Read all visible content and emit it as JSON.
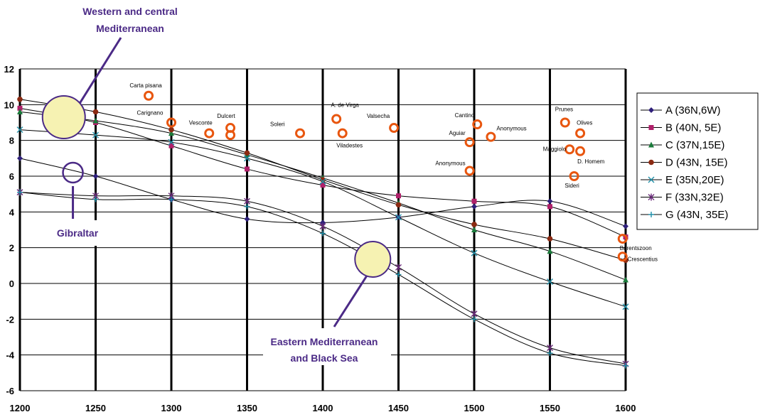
{
  "chart_data": {
    "type": "line",
    "title": "",
    "xlabel": "",
    "ylabel": "",
    "x": [
      1200,
      1250,
      1300,
      1350,
      1400,
      1450,
      1500,
      1550,
      1600
    ],
    "xlim": [
      1200,
      1600
    ],
    "ylim": [
      -6,
      12
    ],
    "x_ticks": [
      "1200",
      "1250",
      "1300",
      "1350",
      "1400",
      "1450",
      "1500",
      "1550",
      "1600"
    ],
    "y_ticks": [
      "12",
      "10",
      "8",
      "6",
      "4",
      "2",
      "0",
      "-2",
      "-4",
      "-6"
    ],
    "grid": "vertical bold lines at every 50 years, horizontal lines at every 2 units",
    "legend_position": "right",
    "series": [
      {
        "name": "A (36N,6W)",
        "color": "#2e1f7a",
        "marker": "diamond",
        "values": [
          7.0,
          6.0,
          4.7,
          3.6,
          3.4,
          3.7,
          4.3,
          4.6,
          3.2
        ]
      },
      {
        "name": "B (40N, 5E)",
        "color": "#b0206a",
        "marker": "square",
        "values": [
          9.8,
          9.0,
          7.7,
          6.4,
          5.5,
          4.9,
          4.6,
          4.3,
          2.6
        ]
      },
      {
        "name": "C (37N,15E)",
        "color": "#1a7a3a",
        "marker": "triangle",
        "values": [
          9.6,
          9.1,
          8.4,
          7.2,
          5.9,
          4.5,
          3.0,
          1.8,
          0.2
        ]
      },
      {
        "name": "D (43N, 15E)",
        "color": "#8b2a12",
        "marker": "circle",
        "values": [
          10.3,
          9.6,
          8.6,
          7.3,
          5.8,
          4.4,
          3.3,
          2.5,
          1.3
        ]
      },
      {
        "name": "E (35N,20E)",
        "color": "#1f8fa8",
        "marker": "x",
        "values": [
          8.6,
          8.3,
          7.9,
          7.0,
          5.7,
          3.7,
          1.7,
          0.1,
          -1.3
        ]
      },
      {
        "name": "F (33N,32E)",
        "color": "#6a2a7a",
        "marker": "star",
        "values": [
          5.1,
          4.9,
          4.9,
          4.6,
          3.2,
          0.9,
          -1.7,
          -3.6,
          -4.5
        ]
      },
      {
        "name": "G (43N, 35E)",
        "color": "#1f8fa8",
        "marker": "plus",
        "values": [
          5.1,
          4.7,
          4.7,
          4.3,
          2.8,
          0.5,
          -2.0,
          -3.9,
          -4.6
        ]
      }
    ],
    "maps": [
      {
        "label": "Carta pisana",
        "x": 1285,
        "y": 10.5
      },
      {
        "label": "Carignano",
        "x": 1300,
        "y": 9.0
      },
      {
        "label": "Vesconte",
        "x": 1325,
        "y": 8.4
      },
      {
        "label": "Dulcert",
        "x": 1339,
        "y": 8.7
      },
      {
        "label": "",
        "x": 1339,
        "y": 8.3
      },
      {
        "label": "Soleri",
        "x": 1385,
        "y": 8.4
      },
      {
        "label": "A. de Virga",
        "x": 1409,
        "y": 9.2
      },
      {
        "label": "Viladestes",
        "x": 1413,
        "y": 8.4
      },
      {
        "label": "Valsecha",
        "x": 1447,
        "y": 8.7
      },
      {
        "label": "Cantino",
        "x": 1502,
        "y": 8.9
      },
      {
        "label": "Aguiar",
        "x": 1497,
        "y": 7.9
      },
      {
        "label": "Anonymous",
        "x": 1511,
        "y": 8.2
      },
      {
        "label": "Anonymous",
        "x": 1497,
        "y": 6.3
      },
      {
        "label": "Prunes",
        "x": 1560,
        "y": 9.0
      },
      {
        "label": "Olives",
        "x": 1570,
        "y": 8.4
      },
      {
        "label": "Maggiolo",
        "x": 1563,
        "y": 7.5
      },
      {
        "label": "D. Homem",
        "x": 1570,
        "y": 7.4
      },
      {
        "label": "Sideri",
        "x": 1566,
        "y": 6.0
      },
      {
        "label": "Barentszoon",
        "x": 1598,
        "y": 2.5
      },
      {
        "label": "Crescentius",
        "x": 1598,
        "y": 1.5
      }
    ],
    "annotations": [
      {
        "label": "Western and central Mediterranean",
        "lines": [
          "Western and central",
          "Mediterranean"
        ]
      },
      {
        "label": "Gibraltar",
        "lines": [
          "Gibraltar"
        ]
      },
      {
        "label": "Eastern Mediterranean and Black Sea",
        "lines": [
          "Eastern Mediterranean",
          "and Black Sea"
        ]
      }
    ]
  }
}
